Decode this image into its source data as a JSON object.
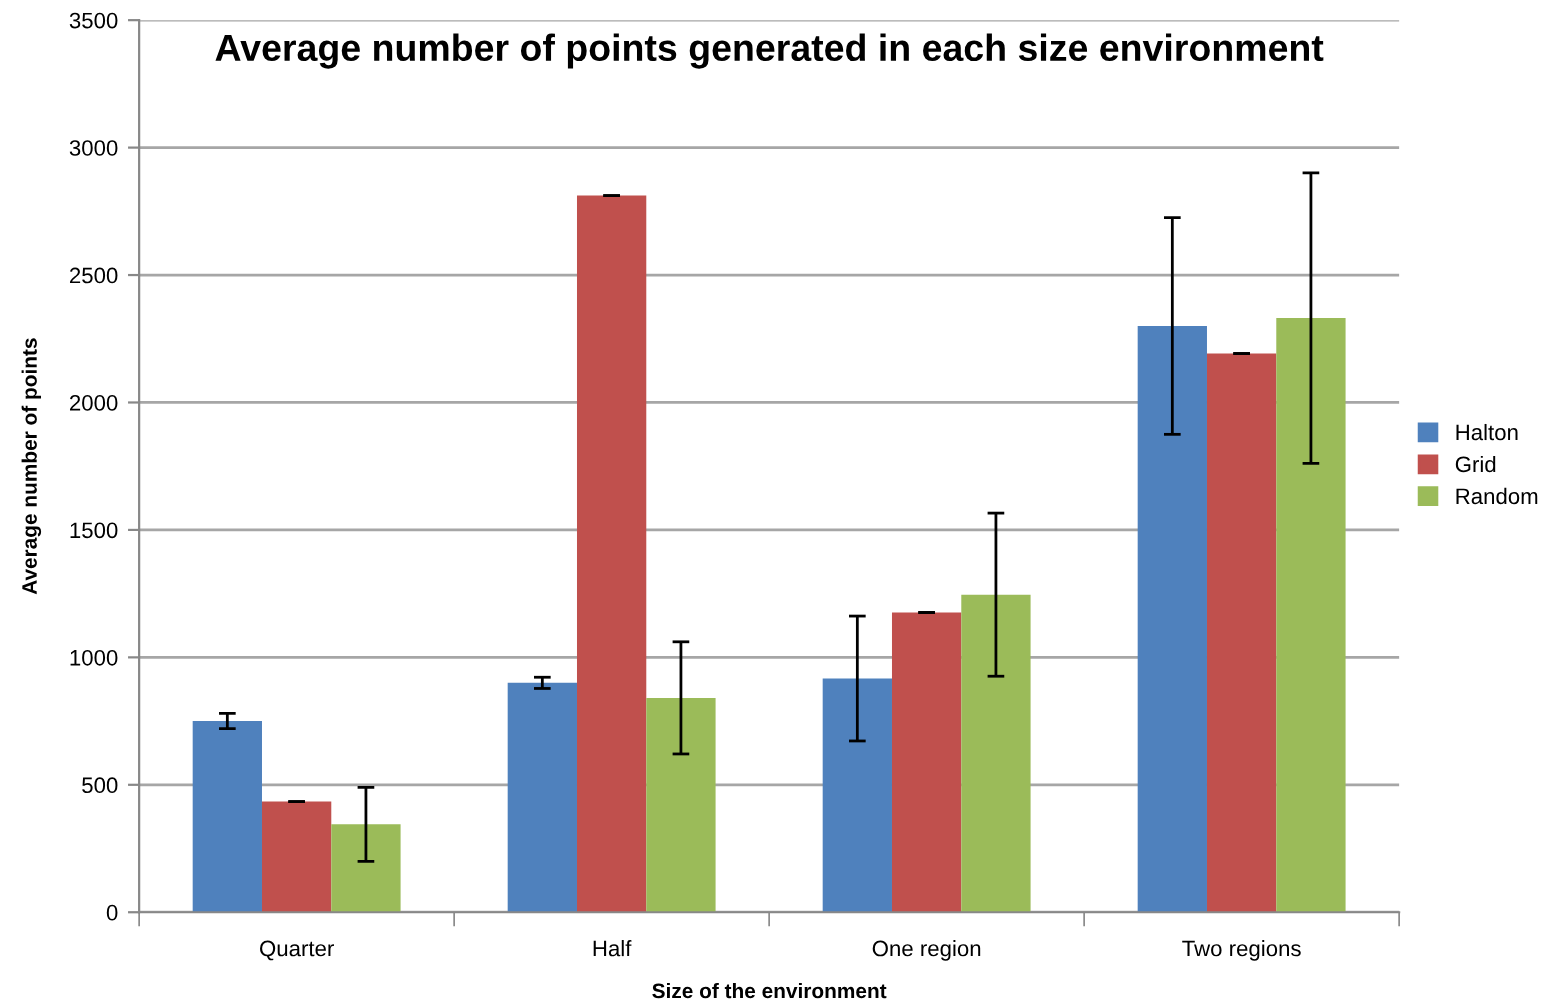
{
  "chart_data": {
    "type": "bar",
    "title": "Average number of points generated in each size environment",
    "xlabel": "Size of the environment",
    "ylabel": "Average number of points",
    "categories": [
      "Quarter",
      "Half",
      "One region",
      "Two regions"
    ],
    "series": [
      {
        "name": "Halton",
        "color": "#4f81bd",
        "values": [
          750,
          900,
          917,
          2300
        ],
        "errors": [
          30,
          22,
          245,
          425
        ]
      },
      {
        "name": "Grid",
        "color": "#c0504d",
        "values": [
          434,
          2812,
          1176,
          2192
        ],
        "errors": [
          0,
          0,
          0,
          0
        ]
      },
      {
        "name": "Random",
        "color": "#9bbb59",
        "values": [
          345,
          841,
          1246,
          2331
        ],
        "errors": [
          145,
          220,
          320,
          570
        ]
      }
    ],
    "ylim": [
      0,
      3500
    ],
    "yticks": [
      0,
      500,
      1000,
      1500,
      2000,
      2500,
      3000,
      3500
    ],
    "grid": "y",
    "legend": "right"
  }
}
